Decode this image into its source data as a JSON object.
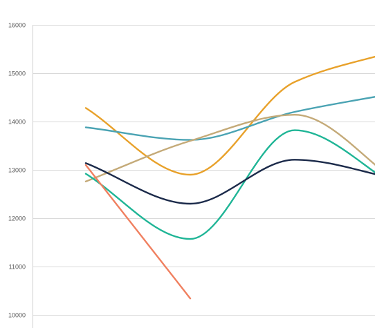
{
  "chart_data": {
    "type": "line",
    "title": "",
    "xlabel": "",
    "ylabel": "",
    "x": [
      1,
      2,
      3,
      4
    ],
    "xlim": [
      0,
      4.8
    ],
    "ylim": [
      10000,
      16000
    ],
    "yticks": [
      10000,
      11000,
      12000,
      13000,
      14000,
      15000,
      16000
    ],
    "y_tick_labels": [
      "10000",
      "11000",
      "12000",
      "13000",
      "14000",
      "15000",
      "16000"
    ],
    "grid": "horizontal",
    "smooth": true,
    "series": [
      {
        "color": "#e8a12a",
        "values": [
          14280,
          12900,
          14820,
          15480
        ]
      },
      {
        "color": "#4aa3b3",
        "values": [
          13880,
          13620,
          14200,
          14600
        ]
      },
      {
        "color": "#c4aa78",
        "values": [
          12760,
          13600,
          14140,
          12720
        ]
      },
      {
        "color": "#1fb596",
        "values": [
          12920,
          11570,
          13820,
          12620
        ]
      },
      {
        "color": "#1b2a4a",
        "values": [
          13140,
          12300,
          13210,
          12800
        ]
      },
      {
        "color": "#f08060",
        "values": [
          13100,
          10340,
          null,
          null
        ]
      }
    ]
  }
}
